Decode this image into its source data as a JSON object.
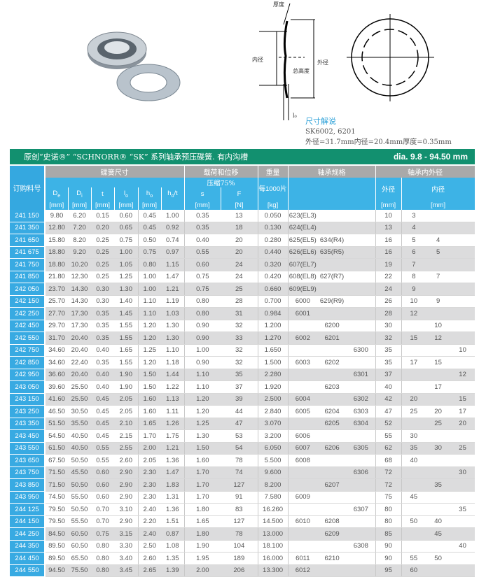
{
  "diagram": {
    "thickness": "厚度",
    "inner_dia": "内径",
    "outer_dia": "外径",
    "total_height": "总高度",
    "lo": "l₀"
  },
  "caption": {
    "title": "尺寸解说",
    "line1": "SK6002, 6201",
    "line2": "外径=31.7mm内径=20.4mm厚度=0.35mm"
  },
  "table": {
    "title": "原创“史诺®” “SCHNORR® “SK” 系列轴承预压碟簧. 有内沟槽",
    "range": "dia. 9.8 - 94.50 mm",
    "order_header": "订购料号",
    "groups": {
      "dims": "碟簧尺寸",
      "load": "载荷和位移",
      "weight": "重量",
      "bearing": "轴承规格",
      "bearing_dia": "轴承内外径"
    },
    "sub": {
      "compress": "压缩75%",
      "per1000": "每1000片",
      "De": "D",
      "De_sub": "e",
      "Di": "D",
      "Di_sub": "i",
      "t": "t",
      "lo": "l",
      "lo_sub": "o",
      "ho": "h",
      "ho_sub": "o",
      "hot": "h",
      "hot_sub": "o",
      "hot_tail": "/t",
      "s": "s",
      "F": "F",
      "outer": "外径",
      "inner": "内径",
      "mm": "[mm]",
      "N": "[N]",
      "kg": "[kg]"
    },
    "rows": [
      {
        "bg": "white",
        "v": [
          "241 150",
          "9.80",
          "6.20",
          "0.15",
          "0.60",
          "0.45",
          "1.00",
          "0.35",
          "13",
          "0.050",
          "623(EL3)",
          "",
          "",
          "10",
          "3",
          "",
          ""
        ]
      },
      {
        "bg": "grey",
        "v": [
          "241 350",
          "12.80",
          "7.20",
          "0.20",
          "0.65",
          "0.45",
          "0.92",
          "0.35",
          "18",
          "0.130",
          "624(EL4)",
          "",
          "",
          "13",
          "4",
          "",
          ""
        ]
      },
      {
        "bg": "white",
        "v": [
          "241 650",
          "15.80",
          "8.20",
          "0.25",
          "0.75",
          "0.50",
          "0.74",
          "0.40",
          "20",
          "0.280",
          "625(EL5)",
          "634(R4)",
          "",
          "16",
          "5",
          "4",
          ""
        ]
      },
      {
        "bg": "grey",
        "v": [
          "241 675",
          "18.80",
          "9.20",
          "0.25",
          "1.00",
          "0.75",
          "0.97",
          "0.55",
          "20",
          "0.440",
          "626(EL6)",
          "635(R5)",
          "",
          "16",
          "6",
          "5",
          ""
        ]
      },
      {
        "bg": "grey",
        "v": [
          "241 750",
          "18.80",
          "10.20",
          "0.25",
          "1.05",
          "0.80",
          "1.15",
          "0.60",
          "24",
          "0.320",
          "607(EL7)",
          "",
          "",
          "19",
          "7",
          "",
          ""
        ]
      },
      {
        "bg": "white",
        "v": [
          "241 850",
          "21.80",
          "12.30",
          "0.25",
          "1.25",
          "1.00",
          "1.47",
          "0.75",
          "24",
          "0.420",
          "608(EL8)",
          "627(R7)",
          "",
          "22",
          "8",
          "7",
          ""
        ]
      },
      {
        "bg": "grey",
        "v": [
          "242 050",
          "23.70",
          "14.30",
          "0.30",
          "1.30",
          "1.00",
          "1.21",
          "0.75",
          "25",
          "0.660",
          "609(EL9)",
          "",
          "",
          "24",
          "9",
          "",
          ""
        ]
      },
      {
        "bg": "white",
        "v": [
          "242 150",
          "25.70",
          "14.30",
          "0.30",
          "1.40",
          "1.10",
          "1.19",
          "0.80",
          "28",
          "0.700",
          "6000",
          "629(R9)",
          "",
          "26",
          "10",
          "9",
          ""
        ]
      },
      {
        "bg": "grey",
        "v": [
          "242 250",
          "27.70",
          "17.30",
          "0.35",
          "1.45",
          "1.10",
          "1.03",
          "0.80",
          "31",
          "0.984",
          "6001",
          "",
          "",
          "28",
          "12",
          "",
          ""
        ]
      },
      {
        "bg": "white",
        "v": [
          "242 450",
          "29.70",
          "17.30",
          "0.35",
          "1.55",
          "1.20",
          "1.30",
          "0.90",
          "32",
          "1.200",
          "",
          "6200",
          "",
          "30",
          "",
          "10",
          ""
        ]
      },
      {
        "bg": "grey",
        "v": [
          "242 550",
          "31.70",
          "20.40",
          "0.35",
          "1.55",
          "1.20",
          "1.30",
          "0.90",
          "33",
          "1.270",
          "6002",
          "6201",
          "",
          "32",
          "15",
          "12",
          ""
        ]
      },
      {
        "bg": "white",
        "v": [
          "242 750",
          "34.60",
          "20.40",
          "0.40",
          "1.65",
          "1.25",
          "1.10",
          "1.00",
          "32",
          "1.650",
          "",
          "",
          "6300",
          "35",
          "",
          "",
          "10"
        ]
      },
      {
        "bg": "white",
        "v": [
          "242 850",
          "34.60",
          "22.40",
          "0.35",
          "1.55",
          "1.20",
          "1.18",
          "0.90",
          "32",
          "1.500",
          "6003",
          "6202",
          "",
          "35",
          "17",
          "15",
          ""
        ]
      },
      {
        "bg": "grey",
        "v": [
          "242 950",
          "36.60",
          "20.40",
          "0.40",
          "1.90",
          "1.50",
          "1.44",
          "1.10",
          "35",
          "2.280",
          "",
          "",
          "6301",
          "37",
          "",
          "",
          "12"
        ]
      },
      {
        "bg": "white",
        "v": [
          "243 050",
          "39.60",
          "25.50",
          "0.40",
          "1.90",
          "1.50",
          "1.22",
          "1.10",
          "37",
          "1.920",
          "",
          "6203",
          "",
          "40",
          "",
          "17",
          ""
        ]
      },
      {
        "bg": "grey",
        "v": [
          "243 150",
          "41.60",
          "25.50",
          "0.45",
          "2.05",
          "1.60",
          "1.13",
          "1.20",
          "39",
          "2.500",
          "6004",
          "",
          "6302",
          "42",
          "20",
          "",
          "15"
        ]
      },
      {
        "bg": "white",
        "v": [
          "243 250",
          "46.50",
          "30.50",
          "0.45",
          "2.05",
          "1.60",
          "1.11",
          "1.20",
          "44",
          "2.840",
          "6005",
          "6204",
          "6303",
          "47",
          "25",
          "20",
          "17"
        ]
      },
      {
        "bg": "grey",
        "v": [
          "243 350",
          "51.50",
          "35.50",
          "0.45",
          "2.10",
          "1.65",
          "1.26",
          "1.25",
          "47",
          "3.070",
          "",
          "6205",
          "6304",
          "52",
          "",
          "25",
          "20"
        ]
      },
      {
        "bg": "white",
        "v": [
          "243 450",
          "54.50",
          "40.50",
          "0.45",
          "2.15",
          "1.70",
          "1.75",
          "1.30",
          "53",
          "3.200",
          "6006",
          "",
          "",
          "55",
          "30",
          "",
          ""
        ]
      },
      {
        "bg": "grey",
        "v": [
          "243 550",
          "61.50",
          "40.50",
          "0.55",
          "2.55",
          "2.00",
          "1.21",
          "1.50",
          "54",
          "6.050",
          "6007",
          "6206",
          "6305",
          "62",
          "35",
          "30",
          "25"
        ]
      },
      {
        "bg": "white",
        "v": [
          "243 650",
          "67.50",
          "50.50",
          "0.55",
          "2.60",
          "2.05",
          "1.36",
          "1.60",
          "78",
          "5.500",
          "6008",
          "",
          "",
          "68",
          "40",
          "",
          ""
        ]
      },
      {
        "bg": "grey",
        "v": [
          "243 750",
          "71.50",
          "45.50",
          "0.60",
          "2.90",
          "2.30",
          "1.47",
          "1.70",
          "74",
          "9.600",
          "",
          "",
          "6306",
          "72",
          "",
          "",
          "30"
        ]
      },
      {
        "bg": "grey",
        "v": [
          "243 850",
          "71.50",
          "50.50",
          "0.60",
          "2.90",
          "2.30",
          "1.83",
          "1.70",
          "127",
          "8.200",
          "",
          "6207",
          "",
          "72",
          "",
          "35",
          ""
        ]
      },
      {
        "bg": "white",
        "v": [
          "243 950",
          "74.50",
          "55.50",
          "0.60",
          "2.90",
          "2.30",
          "1.31",
          "1.70",
          "91",
          "7.580",
          "6009",
          "",
          "",
          "75",
          "45",
          "",
          ""
        ]
      },
      {
        "bg": "white",
        "v": [
          "244 125",
          "79.50",
          "50.50",
          "0.70",
          "3.10",
          "2.40",
          "1.36",
          "1.80",
          "83",
          "16.260",
          "",
          "",
          "6307",
          "80",
          "",
          "",
          "35"
        ]
      },
      {
        "bg": "white",
        "v": [
          "244 150",
          "79.50",
          "55.50",
          "0.70",
          "2.90",
          "2.20",
          "1.51",
          "1.65",
          "127",
          "14.500",
          "6010",
          "6208",
          "",
          "80",
          "50",
          "40",
          ""
        ]
      },
      {
        "bg": "grey",
        "v": [
          "244 250",
          "84.50",
          "60.50",
          "0.75",
          "3.15",
          "2.40",
          "0.87",
          "1.80",
          "78",
          "13.000",
          "",
          "6209",
          "",
          "85",
          "",
          "45",
          ""
        ]
      },
      {
        "bg": "white",
        "v": [
          "244 350",
          "89.50",
          "60.50",
          "0.80",
          "3.30",
          "2.50",
          "1.08",
          "1.90",
          "104",
          "18.100",
          "",
          "",
          "6308",
          "90",
          "",
          "",
          "40"
        ]
      },
      {
        "bg": "white",
        "v": [
          "244 450",
          "89.50",
          "65.50",
          "0.80",
          "3.40",
          "2.60",
          "1.35",
          "1.95",
          "189",
          "16.000",
          "6011",
          "6210",
          "",
          "90",
          "55",
          "50",
          ""
        ]
      },
      {
        "bg": "grey",
        "v": [
          "244 550",
          "94.50",
          "75.50",
          "0.80",
          "3.45",
          "2.65",
          "1.39",
          "2.00",
          "206",
          "13.300",
          "6012",
          "",
          "",
          "95",
          "60",
          "",
          ""
        ]
      }
    ]
  },
  "colors": {
    "title_bar": "#12906f",
    "group_header": "#a9a9a9",
    "sub_header": "#3db3e6",
    "order_col": "#38aae2",
    "row_grey": "#dcdcdd"
  }
}
